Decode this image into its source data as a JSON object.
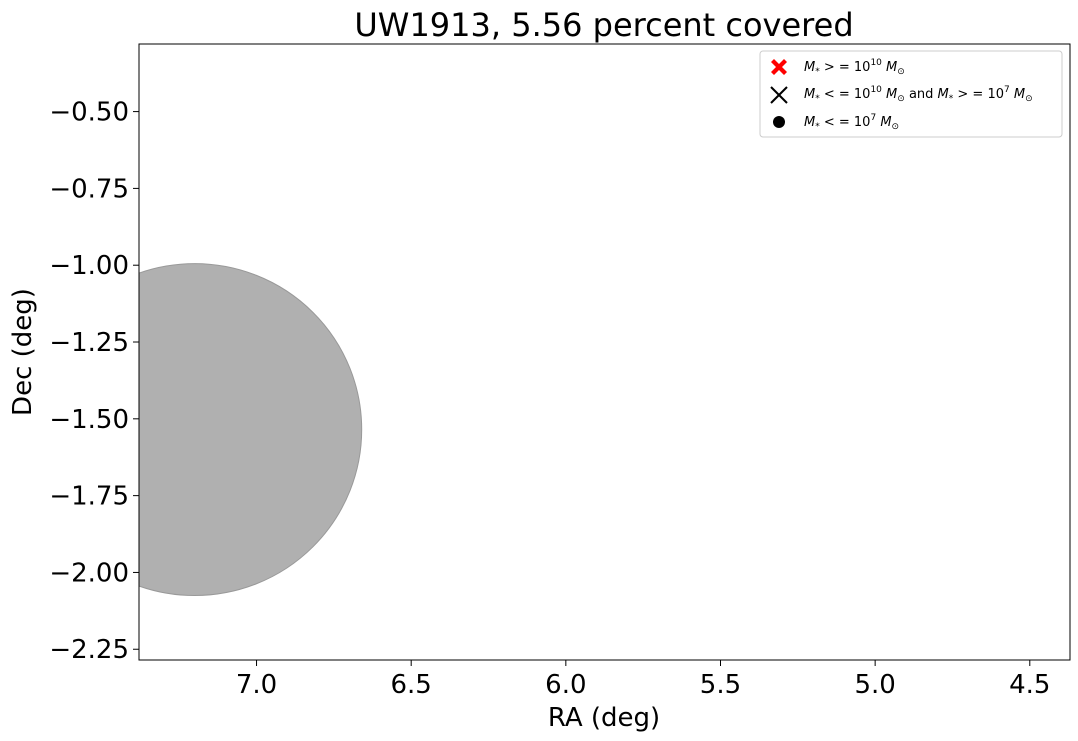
{
  "chart_data": {
    "type": "scatter",
    "title": "UW1913, 5.56 percent covered",
    "xlabel": "RA (deg)",
    "ylabel": "Dec (deg)",
    "xlim": [
      7.38,
      4.37
    ],
    "ylim": [
      -2.285,
      -0.28
    ],
    "x_inverted": true,
    "xticks": [
      7.0,
      6.5,
      6.0,
      5.5,
      5.0,
      4.5
    ],
    "xtick_labels": [
      "7.0",
      "6.5",
      "6.0",
      "5.5",
      "5.0",
      "4.5"
    ],
    "yticks": [
      -0.5,
      -0.75,
      -1.0,
      -1.25,
      -1.5,
      -1.75,
      -2.0,
      -2.25
    ],
    "ytick_labels": [
      "−0.50",
      "−0.75",
      "−1.00",
      "−1.25",
      "−1.50",
      "−1.75",
      "−2.00",
      "−2.25"
    ],
    "grid": false,
    "legend_position": "top-right",
    "legend": [
      {
        "marker": "filled-x",
        "color": "#ff0000",
        "text": "M* >= 10^10 M⊙"
      },
      {
        "marker": "x",
        "color": "#000000",
        "text": "M* <= 10^10 M⊙ and M* >= 10^7 M⊙"
      },
      {
        "marker": "circle",
        "color": "#000000",
        "text": "M* <= 10^7 M⊙"
      }
    ],
    "coverage_region": {
      "shape": "circle",
      "center_ra": 7.2,
      "center_dec": -1.535,
      "radius_deg": 0.54,
      "color": "#b0b0b0",
      "edge_color": "#999999"
    },
    "series": []
  }
}
